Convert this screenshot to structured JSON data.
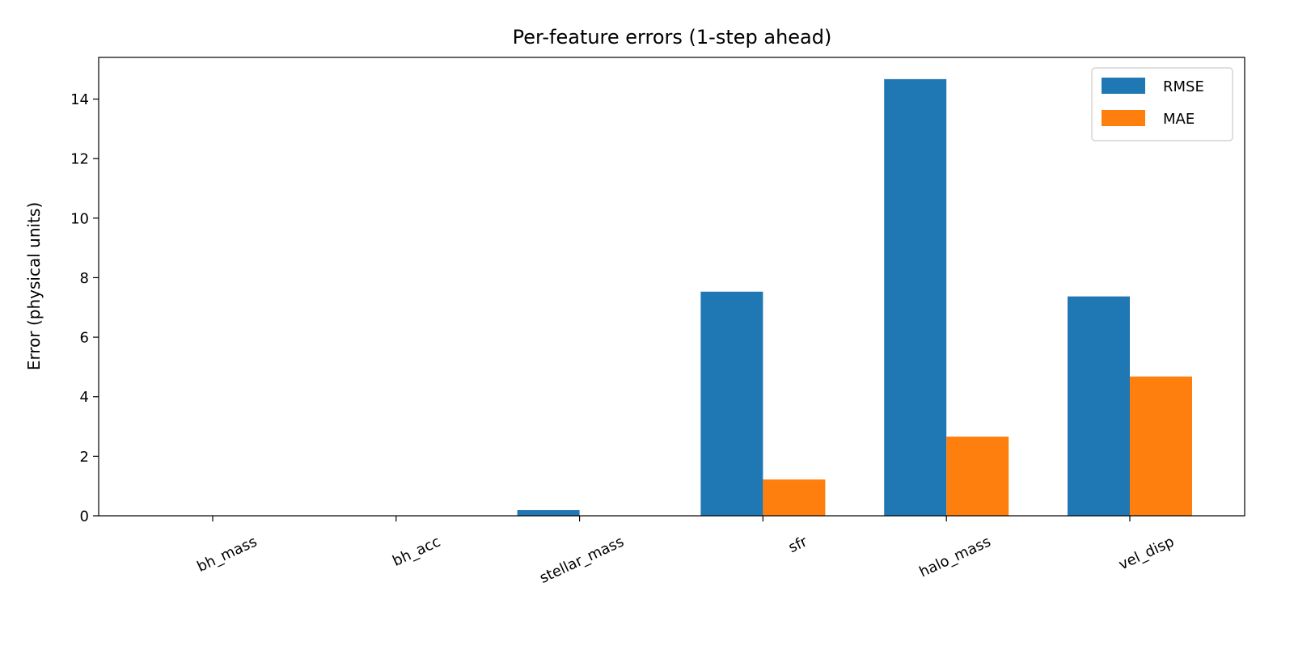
{
  "chart_data": {
    "type": "bar",
    "title": "Per-feature errors (1-step ahead)",
    "xlabel": "",
    "ylabel": "Error (physical units)",
    "categories": [
      "bh_mass",
      "bh_acc",
      "stellar_mass",
      "sfr",
      "halo_mass",
      "vel_disp"
    ],
    "series": [
      {
        "name": "RMSE",
        "color": "#1f77b4",
        "values": [
          0.0,
          0.0,
          0.19,
          7.53,
          14.67,
          7.37
        ]
      },
      {
        "name": "MAE",
        "color": "#ff7f0e",
        "values": [
          0.0,
          0.0,
          0.0,
          1.22,
          2.66,
          4.68
        ]
      }
    ],
    "ylim": [
      0,
      15.4
    ],
    "yticks": [
      0,
      2,
      4,
      6,
      8,
      10,
      12,
      14
    ],
    "ytick_labels": [
      "0",
      "2",
      "4",
      "6",
      "8",
      "10",
      "12",
      "14"
    ],
    "xtick_rotation": -25,
    "grid": false,
    "legend_position": "top-right"
  }
}
